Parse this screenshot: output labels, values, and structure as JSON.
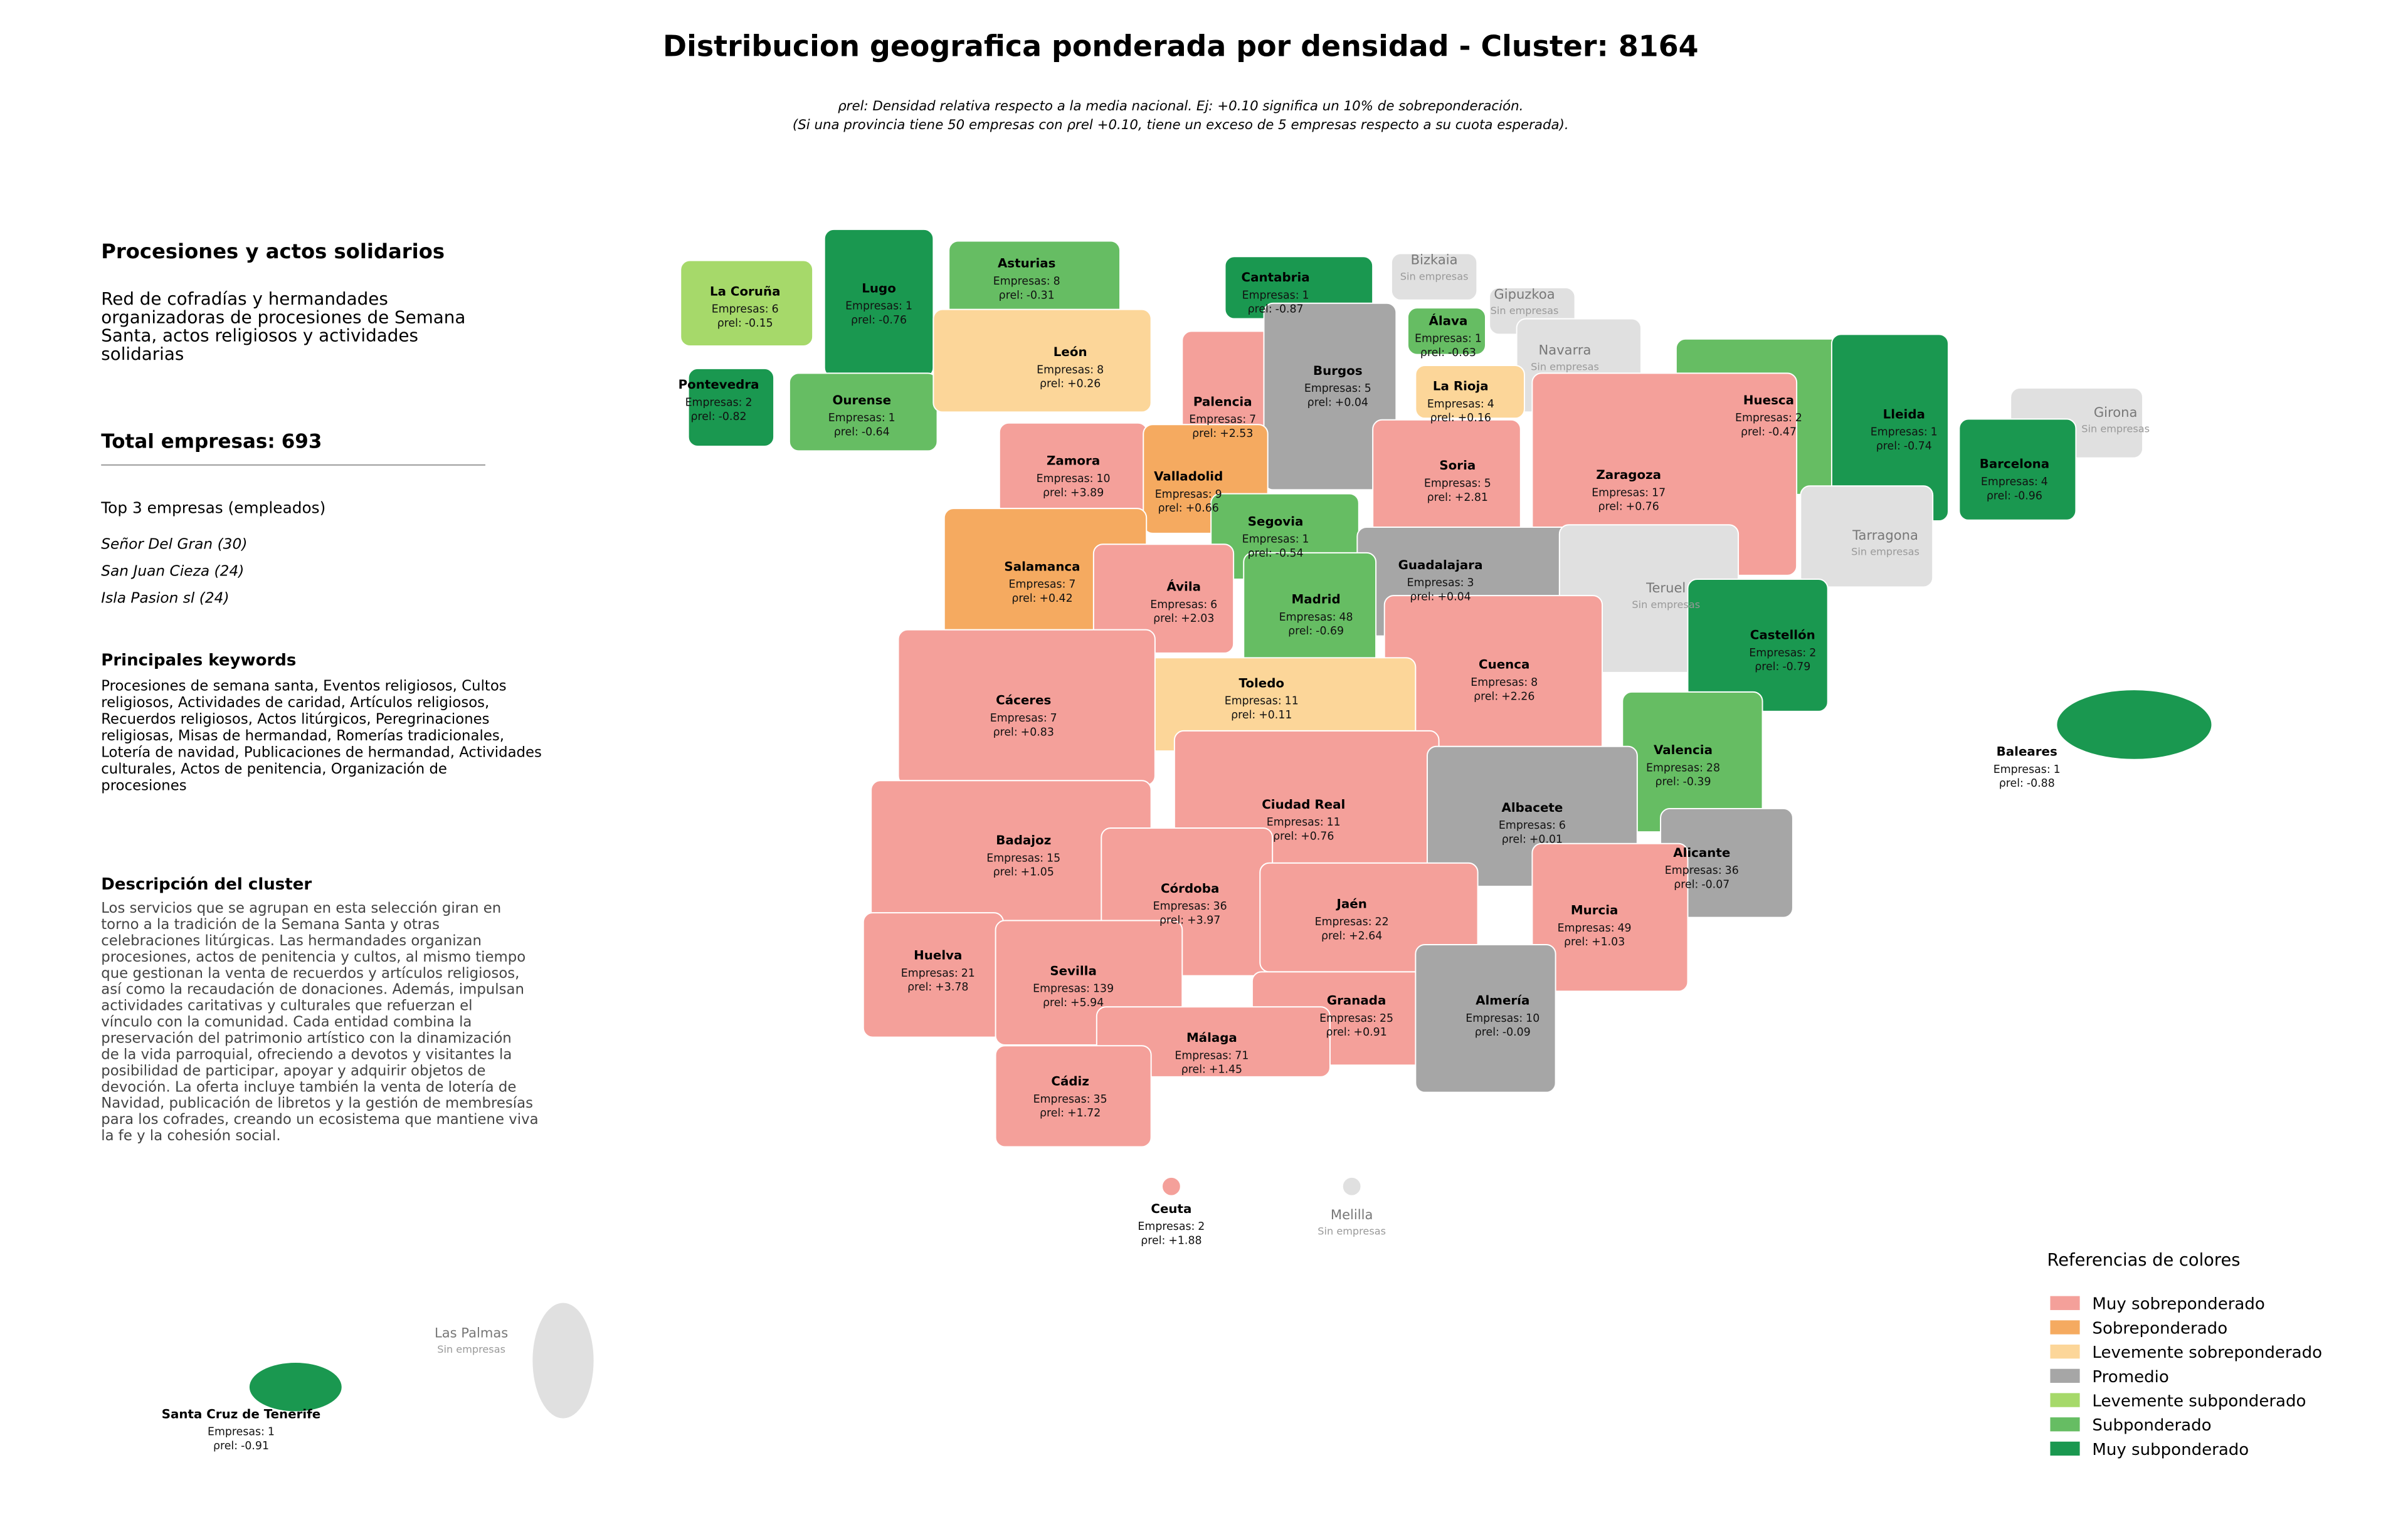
{
  "header": {
    "title": "Distribucion geografica ponderada por densidad - Cluster: 8164",
    "subtitle_lines": [
      "ρrel: Densidad relativa respecto a la media nacional. Ej: +0.10 significa un 10% de sobreponderación.",
      "(Si una provincia tiene 50 empresas con ρrel +0.10, tiene un exceso de 5 empresas respecto a su cuota esperada)."
    ]
  },
  "panel": {
    "cluster_title": "Procesiones y actos solidarios",
    "cluster_summary_lines": [
      "Red de cofradías y hermandades",
      "organizadoras de procesiones de Semana",
      "Santa, actos religiosos y actividades",
      "solidarias"
    ],
    "total_label": "Total empresas:",
    "total": 693,
    "top_heading": "Top 3 empresas (empleados)",
    "top_companies": [
      "Señor Del Gran (30)",
      "San Juan Cieza (24)",
      "Isla Pasion sl (24)"
    ],
    "keywords_heading": "Principales keywords",
    "keywords_lines": [
      "Procesiones de semana santa, Eventos religiosos, Cultos",
      "religiosos, Actividades de caridad, Artículos religiosos,",
      "Recuerdos religiosos, Actos litúrgicos, Peregrinaciones",
      "religiosas, Misas de hermandad, Romerías tradicionales,",
      "Lotería de navidad, Publicaciones de hermandad, Actividades",
      "culturales, Actos de penitencia, Organización de",
      "procesiones"
    ],
    "description_heading": "Descripción del cluster",
    "description_lines": [
      "Los servicios que se agrupan en esta selección giran en",
      "torno a la tradición de la Semana Santa y otras",
      "celebraciones litúrgicas. Las hermandades organizan",
      "procesiones, actos de penitencia y cultos, al mismo tiempo",
      "que gestionan la venta de recuerdos y artículos religiosos,",
      "así como la recaudación de donaciones. Además, impulsan",
      "actividades caritativas y culturales que refuerzan el",
      "vínculo con la comunidad. Cada entidad combina la",
      "preservación del patrimonio artístico con la dinamización",
      "de la vida parroquial, ofreciendo a devotos y visitantes la",
      "posibilidad de participar, apoyar y adquirir objetos de",
      "devoción. La oferta incluye también la venta de lotería de",
      "Navidad, publicación de libretos y la gestión de membresías",
      "para los cofrades, creando un ecosistema que mantiene viva",
      "la fe y la cohesión social."
    ]
  },
  "map": {
    "empresas_label": "Empresas:",
    "rho_label": "ρrel:",
    "no_data_color": "#e0e0e0",
    "provinces": [
      {
        "name": "La Coruña",
        "empresas": 6,
        "rho": -0.15,
        "rho_text": "-0.15",
        "level": 4
      },
      {
        "name": "Lugo",
        "empresas": 1,
        "rho": -0.76,
        "rho_text": "-0.76",
        "level": 6
      },
      {
        "name": "Asturias",
        "empresas": 8,
        "rho": -0.31,
        "rho_text": "-0.31",
        "level": 5
      },
      {
        "name": "Cantabria",
        "empresas": 1,
        "rho": -0.87,
        "rho_text": "-0.87",
        "level": 6
      },
      {
        "name": "Bizkaia",
        "note": "Sin empresas"
      },
      {
        "name": "Gipuzkoa",
        "note": "Sin empresas"
      },
      {
        "name": "Álava",
        "empresas": 1,
        "rho": -0.63,
        "rho_text": "-0.63",
        "level": 5
      },
      {
        "name": "Navarra",
        "note": "Sin empresas"
      },
      {
        "name": "Pontevedra",
        "empresas": 2,
        "rho": -0.82,
        "rho_text": "-0.82",
        "level": 6
      },
      {
        "name": "Ourense",
        "empresas": 1,
        "rho": -0.64,
        "rho_text": "-0.64",
        "level": 5
      },
      {
        "name": "León",
        "empresas": 8,
        "rho": 0.26,
        "rho_text": "+0.26",
        "level": 2
      },
      {
        "name": "Palencia",
        "empresas": 7,
        "rho": 2.53,
        "rho_text": "+2.53",
        "level": 0
      },
      {
        "name": "Burgos",
        "empresas": 5,
        "rho": 0.04,
        "rho_text": "+0.04",
        "level": 3
      },
      {
        "name": "La Rioja",
        "empresas": 4,
        "rho": 0.16,
        "rho_text": "+0.16",
        "level": 2
      },
      {
        "name": "Huesca",
        "empresas": 2,
        "rho": -0.47,
        "rho_text": "-0.47",
        "level": 5
      },
      {
        "name": "Lleida",
        "empresas": 1,
        "rho": -0.74,
        "rho_text": "-0.74",
        "level": 6
      },
      {
        "name": "Girona",
        "note": "Sin empresas"
      },
      {
        "name": "Barcelona",
        "empresas": 4,
        "rho": -0.96,
        "rho_text": "-0.96",
        "level": 6
      },
      {
        "name": "Zamora",
        "empresas": 10,
        "rho": 3.89,
        "rho_text": "+3.89",
        "level": 0
      },
      {
        "name": "Valladolid",
        "empresas": 9,
        "rho": 0.66,
        "rho_text": "+0.66",
        "level": 1
      },
      {
        "name": "Soria",
        "empresas": 5,
        "rho": 2.81,
        "rho_text": "+2.81",
        "level": 0
      },
      {
        "name": "Zaragoza",
        "empresas": 17,
        "rho": 0.76,
        "rho_text": "+0.76",
        "level": 0
      },
      {
        "name": "Tarragona",
        "note": "Sin empresas"
      },
      {
        "name": "Segovia",
        "empresas": 1,
        "rho": -0.54,
        "rho_text": "-0.54",
        "level": 5
      },
      {
        "name": "Salamanca",
        "empresas": 7,
        "rho": 0.42,
        "rho_text": "+0.42",
        "level": 1
      },
      {
        "name": "Guadalajara",
        "empresas": 3,
        "rho": 0.04,
        "rho_text": "+0.04",
        "level": 3
      },
      {
        "name": "Ávila",
        "empresas": 6,
        "rho": 2.03,
        "rho_text": "+2.03",
        "level": 0
      },
      {
        "name": "Madrid",
        "empresas": 48,
        "rho": -0.69,
        "rho_text": "-0.69",
        "level": 5
      },
      {
        "name": "Teruel",
        "note": "Sin empresas"
      },
      {
        "name": "Castellón",
        "empresas": 2,
        "rho": -0.79,
        "rho_text": "-0.79",
        "level": 6
      },
      {
        "name": "Cuenca",
        "empresas": 8,
        "rho": 2.26,
        "rho_text": "+2.26",
        "level": 0
      },
      {
        "name": "Toledo",
        "empresas": 11,
        "rho": 0.11,
        "rho_text": "+0.11",
        "level": 2
      },
      {
        "name": "Cáceres",
        "empresas": 7,
        "rho": 0.83,
        "rho_text": "+0.83",
        "level": 0
      },
      {
        "name": "Valencia",
        "empresas": 28,
        "rho": -0.39,
        "rho_text": "-0.39",
        "level": 5
      },
      {
        "name": "Baleares",
        "empresas": 1,
        "rho": -0.88,
        "rho_text": "-0.88",
        "level": 6
      },
      {
        "name": "Ciudad Real",
        "empresas": 11,
        "rho": 0.76,
        "rho_text": "+0.76",
        "level": 0
      },
      {
        "name": "Albacete",
        "empresas": 6,
        "rho": 0.01,
        "rho_text": "+0.01",
        "level": 3
      },
      {
        "name": "Badajoz",
        "empresas": 15,
        "rho": 1.05,
        "rho_text": "+1.05",
        "level": 0
      },
      {
        "name": "Alicante",
        "empresas": 36,
        "rho": -0.07,
        "rho_text": "-0.07",
        "level": 3
      },
      {
        "name": "Córdoba",
        "empresas": 36,
        "rho": 3.97,
        "rho_text": "+3.97",
        "level": 0
      },
      {
        "name": "Jaén",
        "empresas": 22,
        "rho": 2.64,
        "rho_text": "+2.64",
        "level": 0
      },
      {
        "name": "Murcia",
        "empresas": 49,
        "rho": 1.03,
        "rho_text": "+1.03",
        "level": 0
      },
      {
        "name": "Huelva",
        "empresas": 21,
        "rho": 3.78,
        "rho_text": "+3.78",
        "level": 0
      },
      {
        "name": "Sevilla",
        "empresas": 139,
        "rho": 5.94,
        "rho_text": "+5.94",
        "level": 0
      },
      {
        "name": "Granada",
        "empresas": 25,
        "rho": 0.91,
        "rho_text": "+0.91",
        "level": 0
      },
      {
        "name": "Almería",
        "empresas": 10,
        "rho": -0.09,
        "rho_text": "-0.09",
        "level": 3
      },
      {
        "name": "Málaga",
        "empresas": 71,
        "rho": 1.45,
        "rho_text": "+1.45",
        "level": 0
      },
      {
        "name": "Cádiz",
        "empresas": 35,
        "rho": 1.72,
        "rho_text": "+1.72",
        "level": 0
      },
      {
        "name": "Ceuta",
        "empresas": 2,
        "rho": 1.88,
        "rho_text": "+1.88",
        "level": 0
      },
      {
        "name": "Melilla",
        "note": "Sin empresas"
      },
      {
        "name": "Las Palmas",
        "note": "Sin empresas"
      },
      {
        "name": "Santa Cruz de Tenerife",
        "empresas": 1,
        "rho": -0.91,
        "rho_text": "-0.91",
        "level": 6
      }
    ]
  },
  "legend": {
    "title": "Referencias de colores",
    "items": [
      {
        "name": "Muy sobreponderado",
        "color": "#f4a09a"
      },
      {
        "name": "Sobreponderado",
        "color": "#f5aa60"
      },
      {
        "name": "Levemente sobreponderado",
        "color": "#fcd699"
      },
      {
        "name": "Promedio",
        "color": "#a6a6a6"
      },
      {
        "name": "Levemente subponderado",
        "color": "#a6d96a"
      },
      {
        "name": "Subponderado",
        "color": "#66bd63"
      },
      {
        "name": "Muy subponderado",
        "color": "#1a9850"
      }
    ]
  }
}
